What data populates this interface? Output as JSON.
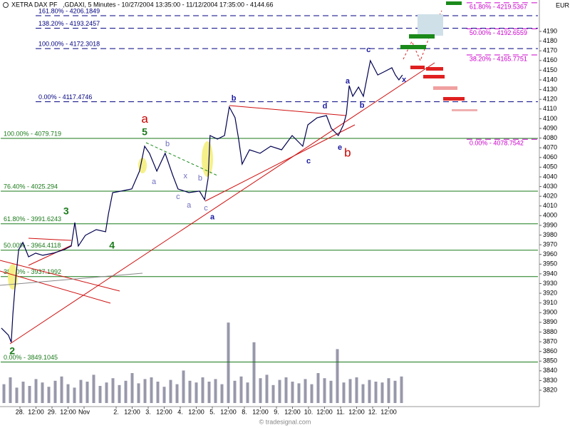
{
  "chart_data": {
    "type": "line",
    "title": "XETRA DAX PF",
    "subtitle": ",GDAXI, 5 Minutes - 10/27/2004 13:35:00 - 11/12/2004 17:35:00 - 4144.66",
    "currency": "EUR",
    "source": "© tradesignal.com",
    "color": "#000050",
    "x": [
      0.42,
      0.64,
      0.73,
      0.78,
      0.87,
      0.96,
      1.09,
      1.27,
      1.49,
      1.71,
      2.04,
      2.38,
      2.6,
      2.71,
      2.82,
      3.04,
      3.38,
      3.67,
      3.76,
      3.89,
      4.16,
      4.49,
      4.73,
      4.89,
      5.04,
      5.27,
      5.53,
      5.76,
      5.93,
      6.27,
      6.6,
      6.76,
      6.87,
      6.93,
      7.16,
      7.38,
      7.53,
      7.71,
      7.82,
      7.93,
      8.16,
      8.49,
      8.82,
      9.16,
      9.49,
      9.82,
      9.98,
      10.27,
      10.56,
      10.71,
      10.93,
      11.09,
      11.18,
      11.27,
      11.38,
      11.56,
      11.71,
      11.82,
      11.93,
      12.16,
      12.38,
      12.6,
      12.71,
      12.82,
      12.93
    ],
    "values": [
      3884.1,
      3876.8,
      3869.4,
      3898.8,
      3935.6,
      3965,
      3972.4,
      3957.6,
      3961.3,
      3959.1,
      3961.3,
      3965,
      3968.7,
      3992.9,
      3968.7,
      3979.7,
      3985.6,
      3983.4,
      4001.8,
      4023.8,
      4025.3,
      4027.5,
      4045.9,
      4071.6,
      4064.3,
      4045.9,
      4064.3,
      4042.2,
      4027.5,
      4023.8,
      4025.3,
      4016.5,
      4038.5,
      4082.6,
      4079,
      4082.6,
      4112.1,
      4101,
      4079,
      4053.2,
      4067.9,
      4064.3,
      4071.6,
      4067.9,
      4082.6,
      4071.6,
      4093.7,
      4101,
      4103.2,
      4090,
      4082.6,
      4093.7,
      4104.7,
      4134.1,
      4123.1,
      4132.6,
      4123.1,
      4141.5,
      4159.9,
      4145.1,
      4148.8,
      4152.5,
      4145.1,
      4140,
      4145.1
    ],
    "xlim": [
      0.4,
      17.2
    ],
    "ylim": [
      3803.1,
      4222.4
    ],
    "xticks": [
      {
        "value": 1,
        "label": "28."
      },
      {
        "value": 1.5,
        "label": "12:00"
      },
      {
        "value": 2,
        "label": "29."
      },
      {
        "value": 2.5,
        "label": "12:00"
      },
      {
        "value": 3,
        "label": "Nov"
      },
      {
        "value": 4,
        "label": "2."
      },
      {
        "value": 4.5,
        "label": "12:00"
      },
      {
        "value": 5,
        "label": "3."
      },
      {
        "value": 5.5,
        "label": "12:00"
      },
      {
        "value": 6,
        "label": "4."
      },
      {
        "value": 6.5,
        "label": "12:00"
      },
      {
        "value": 7,
        "label": "5."
      },
      {
        "value": 7.5,
        "label": "12:00"
      },
      {
        "value": 8,
        "label": "8."
      },
      {
        "value": 8.5,
        "label": "12:00"
      },
      {
        "value": 9,
        "label": "9."
      },
      {
        "value": 9.5,
        "label": "12:00"
      },
      {
        "value": 10,
        "label": "10."
      },
      {
        "value": 10.5,
        "label": "12:00"
      },
      {
        "value": 11,
        "label": "11."
      },
      {
        "value": 11.5,
        "label": "12:00"
      },
      {
        "value": 12,
        "label": "12."
      },
      {
        "value": 12.5,
        "label": "12:00"
      }
    ],
    "yticks": [
      3820,
      3830,
      3840,
      3850,
      3860,
      3870,
      3880,
      3890,
      3900,
      3910,
      3920,
      3930,
      3940,
      3950,
      3960,
      3970,
      3980,
      3990,
      4000,
      4010,
      4020,
      4030,
      4040,
      4050,
      4060,
      4070,
      4080,
      4090,
      4100,
      4110,
      4120,
      4130,
      4140,
      4150,
      4160,
      4170,
      4180,
      4190
    ],
    "volume": {
      "color": "#444466",
      "ylim": [
        0,
        100
      ],
      "x": [
        0.5,
        0.7,
        0.9,
        1.1,
        1.3,
        1.5,
        1.7,
        1.9,
        2.1,
        2.3,
        2.5,
        2.7,
        2.9,
        3.1,
        3.3,
        3.5,
        3.7,
        3.9,
        4.1,
        4.3,
        4.5,
        4.7,
        4.9,
        5.1,
        5.3,
        5.5,
        5.7,
        5.9,
        6.1,
        6.3,
        6.5,
        6.7,
        6.9,
        7.1,
        7.3,
        7.5,
        7.7,
        7.9,
        8.1,
        8.3,
        8.5,
        8.7,
        8.9,
        9.1,
        9.3,
        9.5,
        9.7,
        9.9,
        10.1,
        10.3,
        10.5,
        10.7,
        10.9,
        11.1,
        11.3,
        11.5,
        11.7,
        11.9,
        12.1,
        12.3,
        12.5,
        12.7,
        12.9
      ],
      "values": [
        22,
        30,
        18,
        25,
        20,
        28,
        24,
        19,
        26,
        31,
        22,
        18,
        27,
        25,
        33,
        20,
        24,
        29,
        21,
        26,
        35,
        23,
        28,
        30,
        25,
        19,
        27,
        22,
        38,
        26,
        24,
        30,
        25,
        28,
        22,
        94,
        26,
        31,
        24,
        71,
        29,
        33,
        21,
        27,
        30,
        25,
        23,
        28,
        22,
        35,
        29,
        26,
        63,
        24,
        28,
        30,
        22,
        27,
        25,
        24,
        29,
        26,
        31
      ]
    },
    "levels": [
      {
        "color": "#000080",
        "dash": true,
        "label_side": "above",
        "x_start": 1.49,
        "items": [
          {
            "value": 4206.1849,
            "label": "161.80% - 4206.1849"
          },
          {
            "value": 4193.2457,
            "label": "138.20% - 4193.2457"
          },
          {
            "value": 4172.3018,
            "label": "100.00% - 4172.3018"
          },
          {
            "value": 4117.4746,
            "label": "0.00% - 4117.4746"
          }
        ]
      },
      {
        "color": "#1a7a1a",
        "dash": false,
        "label_side": "above",
        "x_start": 0.4,
        "items": [
          {
            "value": 4079.719,
            "label": "100.00% - 4079.719"
          },
          {
            "value": 4025.294,
            "label": "76.40% - 4025.294"
          },
          {
            "value": 3991.6243,
            "label": "61.80% - 3991.6243"
          },
          {
            "value": 3964.4118,
            "label": "50.00% - 3964.4118"
          },
          {
            "value": 3937.1992,
            "label": "38.20% - 3937.1992"
          },
          {
            "value": 3849.1045,
            "label": "0.00% - 3849.1045"
          }
        ]
      },
      {
        "color": "#cc00cc",
        "dash": true,
        "label_side": "below",
        "x_start": 14.93,
        "items": [
          {
            "value": 4219.5367,
            "label": "61.80% - 4219.5367"
          },
          {
            "value": 4192.6559,
            "label": "50.00% - 4192.6559"
          },
          {
            "value": 4165.7751,
            "label": "38.20% - 4165.7751"
          },
          {
            "value": 4078.7542,
            "label": "0.00% - 4078.7542"
          }
        ]
      }
    ],
    "annotations": [
      {
        "text": "a",
        "x": 4.89,
        "y": 4099,
        "style": "major",
        "color": "#cc0000"
      },
      {
        "text": "5",
        "x": 4.89,
        "y": 4085.6,
        "style": "wave",
        "color": "#1a7a1a"
      },
      {
        "text": "3",
        "x": 2.44,
        "y": 4004,
        "style": "wave",
        "color": "#1a7a1a"
      },
      {
        "text": "4",
        "x": 3.87,
        "y": 3968.7,
        "style": "wave",
        "color": "#1a7a1a"
      },
      {
        "text": "2",
        "x": 0.76,
        "y": 3860,
        "style": "wave",
        "color": "#1a7a1a"
      },
      {
        "text": "b",
        "x": 11.22,
        "y": 4064.3,
        "style": "major",
        "color": "#cc0000"
      },
      {
        "text": "b",
        "x": 7.67,
        "y": 4120.9,
        "style": "minor",
        "color": "#1a1aa0"
      },
      {
        "text": "c",
        "x": 10.0,
        "y": 4056.2,
        "style": "minor",
        "color": "#1a1aa0"
      },
      {
        "text": "d",
        "x": 10.51,
        "y": 4112.8,
        "style": "minor",
        "color": "#1a1aa0"
      },
      {
        "text": "e",
        "x": 10.98,
        "y": 4070.1,
        "style": "minor",
        "color": "#1a1aa0"
      },
      {
        "text": "a",
        "x": 7.0,
        "y": 3998.2,
        "style": "minor",
        "color": "#1a1aa0"
      },
      {
        "text": "a",
        "x": 11.22,
        "y": 4138.5,
        "style": "minor",
        "color": "#1a1aa0"
      },
      {
        "text": "b",
        "x": 11.67,
        "y": 4113.5,
        "style": "minor",
        "color": "#1a1aa0"
      },
      {
        "text": "c",
        "x": 11.87,
        "y": 4170.9,
        "style": "minor",
        "color": "#1a1aa0"
      },
      {
        "text": "x",
        "x": 12.98,
        "y": 4140,
        "style": "minor",
        "color": "#1a1aa0"
      },
      {
        "text": "b",
        "x": 5.6,
        "y": 4073.8,
        "style": "sub",
        "color": "#7070c0"
      },
      {
        "text": "a",
        "x": 5.18,
        "y": 4034.9,
        "style": "sub",
        "color": "#7070c0"
      },
      {
        "text": "x",
        "x": 6.16,
        "y": 4040.7,
        "style": "sub",
        "color": "#7070c0"
      },
      {
        "text": "c",
        "x": 5.93,
        "y": 4019.4,
        "style": "sub",
        "color": "#7070c0"
      },
      {
        "text": "a",
        "x": 6.27,
        "y": 4010.6,
        "style": "sub",
        "color": "#7070c0"
      },
      {
        "text": "b",
        "x": 6.62,
        "y": 4038.5,
        "style": "sub",
        "color": "#7070c0"
      },
      {
        "text": "c",
        "x": 6.8,
        "y": 4007.6,
        "style": "sub",
        "color": "#7070c0"
      }
    ]
  }
}
